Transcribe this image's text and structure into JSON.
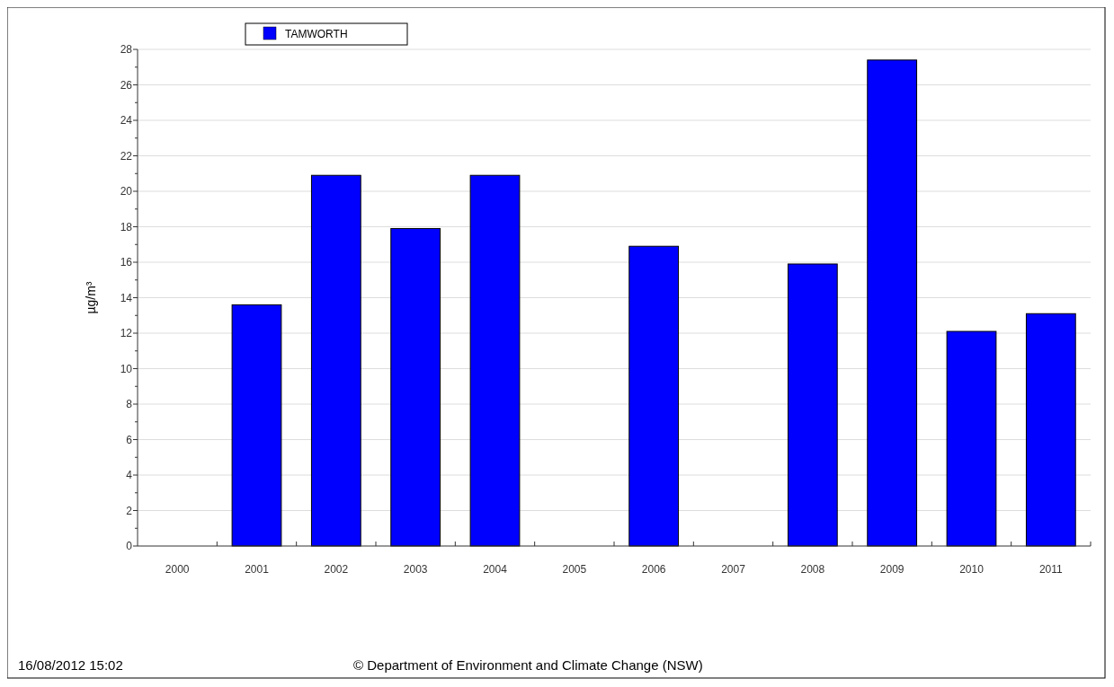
{
  "chart_data": {
    "type": "bar",
    "ylabel": "µg/m³",
    "categories": [
      "2000",
      "2001",
      "2002",
      "2003",
      "2004",
      "2005",
      "2006",
      "2007",
      "2008",
      "2009",
      "2010",
      "2011"
    ],
    "series": [
      {
        "name": "TAMWORTH",
        "color": "#0000ff",
        "values": [
          null,
          13.6,
          20.9,
          17.9,
          20.9,
          null,
          16.9,
          null,
          15.9,
          27.4,
          12.1,
          13.1
        ]
      }
    ],
    "ylim": [
      0,
      28
    ],
    "yticks": [
      0,
      {
        "value": 1,
        "label": null
      },
      2,
      {
        "value": 3,
        "label": null
      },
      4,
      {
        "value": 5,
        "label": null
      },
      6,
      {
        "value": 7,
        "label": null
      },
      8,
      {
        "value": 9,
        "label": null
      },
      10,
      {
        "value": 11,
        "label": null
      },
      12,
      {
        "value": 13,
        "label": null
      },
      14,
      {
        "value": 15,
        "label": null
      },
      16,
      {
        "value": 17,
        "label": null
      },
      18,
      {
        "value": 19,
        "label": null
      },
      20,
      {
        "value": 21,
        "label": null
      },
      22,
      {
        "value": 23,
        "label": null
      },
      24,
      {
        "value": 25,
        "label": null
      },
      26,
      {
        "value": 27,
        "label": null
      },
      28
    ],
    "grid": "y",
    "legend": "top left",
    "annotations": [
      "16/08/2012 15:02",
      "© Department of Environment and Climate Change (NSW)"
    ]
  }
}
